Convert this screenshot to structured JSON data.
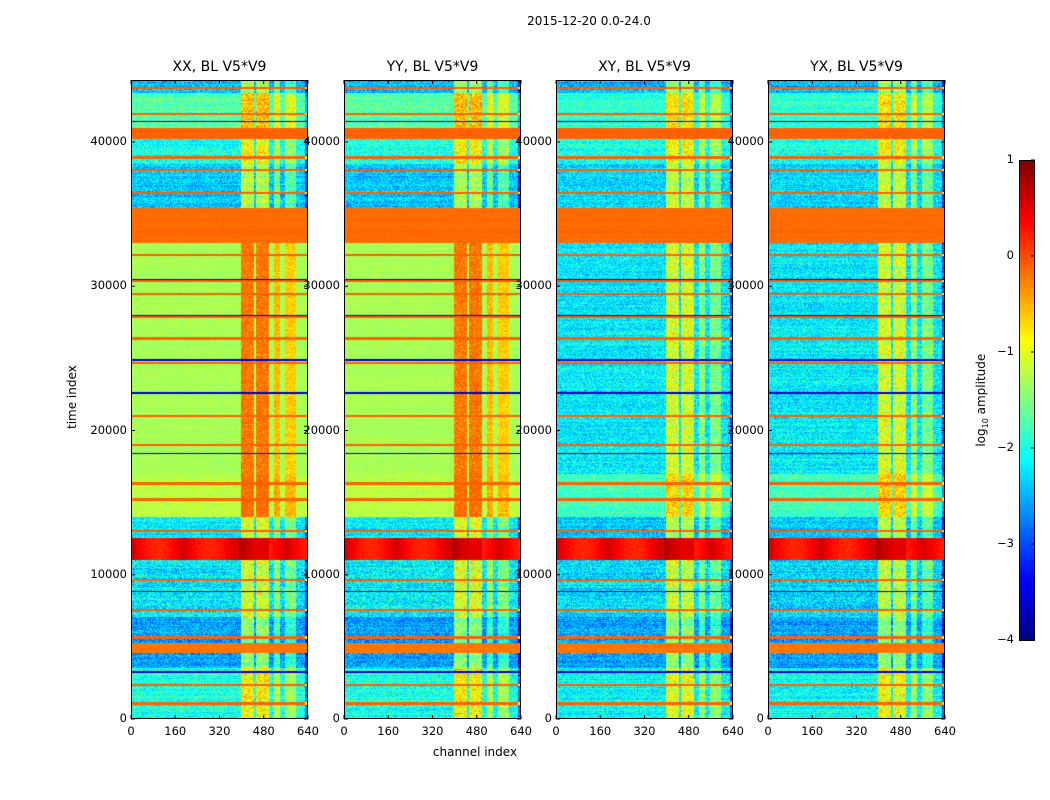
{
  "figure": {
    "title": "2015-12-20 0.0-24.0",
    "ylabel": "time index",
    "xlabel": "channel index",
    "colorbar_label_prefix": "log",
    "colorbar_label_sub": "10",
    "colorbar_label_suffix": " amplitude"
  },
  "chart_data": {
    "type": "heatmap",
    "colormap": "jet",
    "x_ticks": [
      "0",
      "160",
      "320",
      "480",
      "640"
    ],
    "x_tick_values": [
      0,
      160,
      320,
      480,
      640
    ],
    "y_ticks": [
      "0",
      "10000",
      "20000",
      "30000",
      "40000"
    ],
    "y_tick_values": [
      0,
      10000,
      20000,
      30000,
      40000
    ],
    "xlim": [
      0,
      640
    ],
    "ylim": [
      0,
      44300
    ],
    "colorbar": {
      "range": [
        -4,
        1
      ],
      "ticks": [
        "1",
        "0",
        "−1",
        "−2",
        "−3",
        "−4"
      ],
      "tick_values": [
        1,
        0,
        -1,
        -2,
        -3,
        -4
      ]
    },
    "panels": [
      {
        "title": "XX, BL V5*V9",
        "mode": "parallel"
      },
      {
        "title": "YY, BL V5*V9",
        "mode": "parallel"
      },
      {
        "title": "XY, BL V5*V9",
        "mode": "cross"
      },
      {
        "title": "YX, BL V5*V9",
        "mode": "cross"
      }
    ],
    "time_bands_parallel": [
      [
        0,
        3500,
        -2.0,
        0.5
      ],
      [
        3500,
        4500,
        -2.6,
        0.5
      ],
      [
        4500,
        5200,
        -0.2,
        0.1
      ],
      [
        5200,
        7000,
        -2.6,
        0.5
      ],
      [
        7000,
        11000,
        -2.2,
        0.6
      ],
      [
        11000,
        12500,
        0.6,
        0.2
      ],
      [
        12500,
        14000,
        -2.2,
        0.5
      ],
      [
        14000,
        17000,
        -1.2,
        0.2
      ],
      [
        17000,
        33000,
        -1.3,
        0.15
      ],
      [
        33000,
        35500,
        -0.15,
        0.05
      ],
      [
        35500,
        38500,
        -2.4,
        0.5
      ],
      [
        38500,
        40300,
        -2.0,
        0.5
      ],
      [
        40300,
        41000,
        -0.1,
        0.05
      ],
      [
        41000,
        43500,
        -1.7,
        0.4
      ],
      [
        43500,
        44300,
        -2.5,
        0.5
      ]
    ],
    "time_bands_cross": [
      [
        0,
        3500,
        -2.1,
        0.5
      ],
      [
        3500,
        4500,
        -2.6,
        0.5
      ],
      [
        4500,
        5200,
        -0.2,
        0.1
      ],
      [
        5200,
        7000,
        -2.6,
        0.5
      ],
      [
        7000,
        11000,
        -2.3,
        0.6
      ],
      [
        11000,
        12500,
        0.6,
        0.2
      ],
      [
        12500,
        14000,
        -2.4,
        0.5
      ],
      [
        14000,
        17000,
        -1.8,
        0.4
      ],
      [
        17000,
        33000,
        -2.2,
        0.5
      ],
      [
        33000,
        35500,
        -0.15,
        0.05
      ],
      [
        35500,
        38500,
        -2.3,
        0.5
      ],
      [
        38500,
        40300,
        -2.0,
        0.5
      ],
      [
        40300,
        41000,
        -0.1,
        0.05
      ],
      [
        41000,
        43500,
        -1.9,
        0.4
      ],
      [
        43500,
        44300,
        -2.5,
        0.5
      ]
    ],
    "orange_lines": [
      1000,
      2300,
      5600,
      7500,
      9600,
      13000,
      15200,
      16300,
      19000,
      21000,
      24700,
      26400,
      27900,
      29500,
      30400,
      32200,
      33800,
      36500,
      38100,
      39000,
      42000,
      43800
    ],
    "dark_lines": [
      3200,
      8800,
      18400,
      22600,
      24900,
      28000,
      30500,
      41500
    ],
    "channel_bands": [
      [
        400,
        445,
        1.2
      ],
      [
        455,
        500,
        1.2
      ],
      [
        520,
        540,
        0.8
      ],
      [
        560,
        600,
        0.7
      ]
    ]
  }
}
